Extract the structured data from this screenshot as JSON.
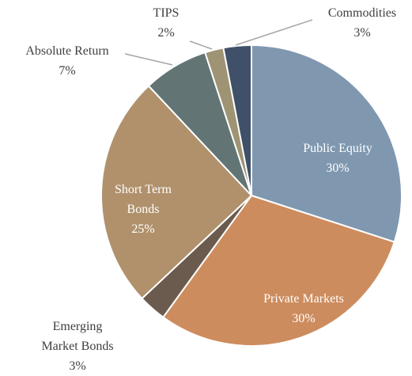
{
  "chart_data": {
    "type": "pie",
    "categories": [
      "Public Equity",
      "Private Markets",
      "Emerging Market Bonds",
      "Short Term Bonds",
      "Absolute Return",
      "TIPS",
      "Commodities"
    ],
    "values": [
      30,
      30,
      3,
      25,
      7,
      2,
      3
    ],
    "value_labels": [
      "30%",
      "30%",
      "3%",
      "25%",
      "7%",
      "2%",
      "3%"
    ],
    "colors": [
      "#7f98b0",
      "#cd8c5e",
      "#6b5b4e",
      "#b0916c",
      "#627574",
      "#9e9474",
      "#3f5068"
    ]
  }
}
